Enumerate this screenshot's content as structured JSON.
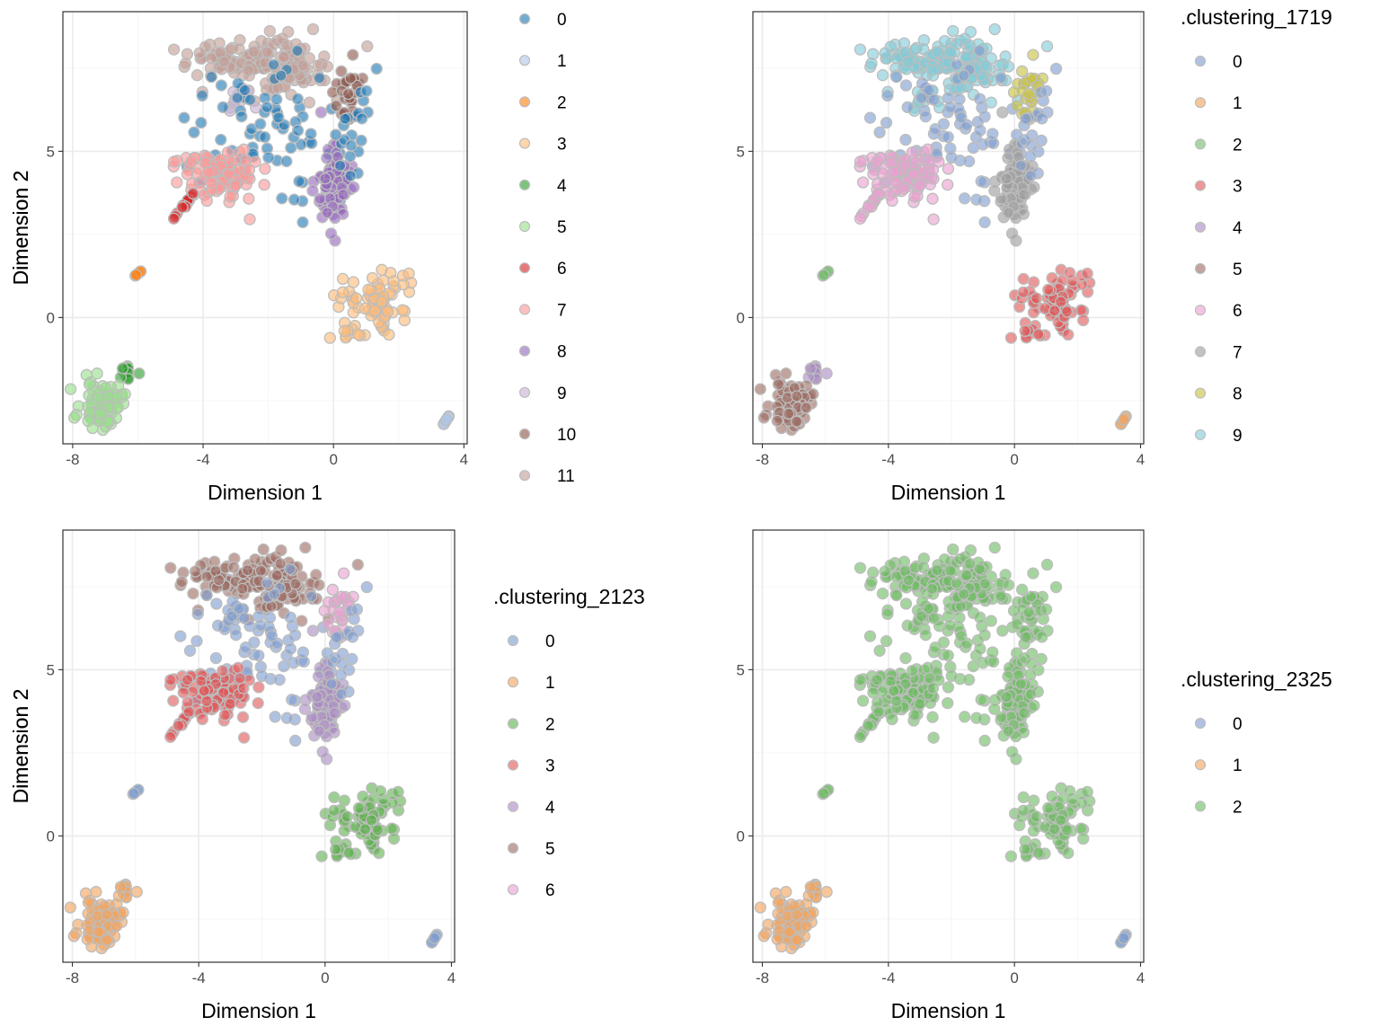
{
  "chart_data": [
    {
      "type": "scatter",
      "xlabel": "Dimension 1",
      "ylabel": "Dimension 2",
      "xlim": [
        -8.3,
        4.1
      ],
      "ylim": [
        -3.8,
        9.2
      ],
      "x_ticks": [
        "-8",
        "-4",
        "0",
        "4"
      ],
      "y_ticks": [
        "0",
        "5"
      ],
      "legend_title": "",
      "legend_position": "right",
      "grid": true,
      "point_stroke": "#bdbdbd",
      "series": [
        {
          "name": "0",
          "color": "#1f77b4"
        },
        {
          "name": "1",
          "color": "#aec7e8"
        },
        {
          "name": "2",
          "color": "#ff7f0e"
        },
        {
          "name": "3",
          "color": "#ffbb78"
        },
        {
          "name": "4",
          "color": "#2ca02c"
        },
        {
          "name": "5",
          "color": "#98df8a"
        },
        {
          "name": "6",
          "color": "#d62728"
        },
        {
          "name": "7",
          "color": "#ff9896"
        },
        {
          "name": "8",
          "color": "#9467bd"
        },
        {
          "name": "9",
          "color": "#c5b0d5"
        },
        {
          "name": "10",
          "color": "#8c564b"
        },
        {
          "name": "11",
          "color": "#c49c94"
        }
      ]
    },
    {
      "type": "scatter",
      "xlabel": "Dimension 1",
      "ylabel": "Dimension 2",
      "xlim": [
        -8.3,
        4.1
      ],
      "ylim": [
        -3.8,
        9.2
      ],
      "x_ticks": [
        "-8",
        "-4",
        "0",
        "4"
      ],
      "y_ticks": [
        "0",
        "5"
      ],
      "legend_title": ".clustering_1719",
      "legend_position": "right",
      "grid": true,
      "point_stroke": "#bdbdbd",
      "series": [
        {
          "name": "0",
          "color": "#7e9cd0"
        },
        {
          "name": "1",
          "color": "#f2a35c"
        },
        {
          "name": "2",
          "color": "#72bd6a"
        },
        {
          "name": "3",
          "color": "#e15759"
        },
        {
          "name": "4",
          "color": "#a98bc4"
        },
        {
          "name": "5",
          "color": "#9c6b61"
        },
        {
          "name": "6",
          "color": "#ea9fd0"
        },
        {
          "name": "7",
          "color": "#9d9d9d"
        },
        {
          "name": "8",
          "color": "#c7c23f"
        },
        {
          "name": "9",
          "color": "#7fcbd9"
        }
      ]
    },
    {
      "type": "scatter",
      "xlabel": "Dimension 1",
      "ylabel": "Dimension 2",
      "xlim": [
        -8.3,
        4.1
      ],
      "ylim": [
        -3.8,
        9.2
      ],
      "x_ticks": [
        "-8",
        "-4",
        "0",
        "4"
      ],
      "y_ticks": [
        "0",
        "5"
      ],
      "legend_title": ".clustering_2123",
      "legend_position": "right",
      "grid": true,
      "point_stroke": "#bdbdbd",
      "series": [
        {
          "name": "0",
          "color": "#7e9cd0"
        },
        {
          "name": "1",
          "color": "#f2a35c"
        },
        {
          "name": "2",
          "color": "#5fb14f"
        },
        {
          "name": "3",
          "color": "#e15759"
        },
        {
          "name": "4",
          "color": "#a98bc4"
        },
        {
          "name": "5",
          "color": "#9c6b61"
        },
        {
          "name": "6",
          "color": "#ea9fd0"
        }
      ]
    },
    {
      "type": "scatter",
      "xlabel": "Dimension 1",
      "ylabel": "Dimension 2",
      "xlim": [
        -8.3,
        4.1
      ],
      "ylim": [
        -3.8,
        9.2
      ],
      "x_ticks": [
        "-8",
        "-4",
        "0",
        "4"
      ],
      "y_ticks": [
        "0",
        "5"
      ],
      "legend_title": ".clustering_2325",
      "legend_position": "right",
      "grid": true,
      "point_stroke": "#bdbdbd",
      "series": [
        {
          "name": "0",
          "color": "#7e9cd0"
        },
        {
          "name": "1",
          "color": "#f2a35c"
        },
        {
          "name": "2",
          "color": "#6dbb63"
        }
      ]
    }
  ]
}
